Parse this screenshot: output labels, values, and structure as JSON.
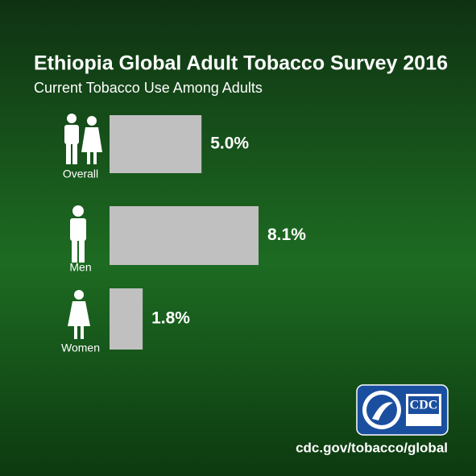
{
  "chart_data": {
    "type": "bar",
    "orientation": "horizontal",
    "title": "Ethiopia Global Adult Tobacco Survey 2016",
    "subtitle": "Current Tobacco Use Among Adults",
    "categories": [
      "Overall",
      "Men",
      "Women"
    ],
    "values": [
      5.0,
      8.1,
      1.8
    ],
    "value_labels": [
      "5.0%",
      "8.1%",
      "1.8%"
    ],
    "color": "#c0c0c0",
    "source": "cdc.gov/tobacco/global",
    "logo_text": "CDC"
  }
}
